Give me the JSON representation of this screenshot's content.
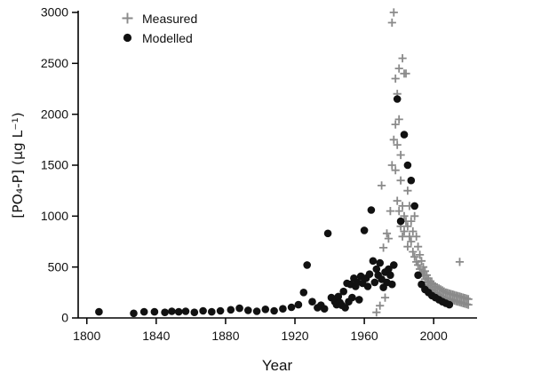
{
  "chart_data": {
    "type": "scatter",
    "title": "",
    "xlabel": "Year",
    "ylabel": "[PO₄-P] (µg L⁻¹)",
    "xlim": [
      1795,
      2025
    ],
    "ylim": [
      0,
      3000
    ],
    "xticks": [
      1800,
      1840,
      1880,
      1920,
      1960,
      2000
    ],
    "yticks": [
      0,
      500,
      1000,
      1500,
      2000,
      2500,
      3000
    ],
    "grid": false,
    "legend_position": "upper-left-inside",
    "colors": {
      "measured": "#8a8a8a",
      "modelled": "#111111",
      "axis": "#000000",
      "tick_text": "#111111"
    },
    "legend": [
      {
        "label": "Measured",
        "marker": "plus",
        "color": "#8a8a8a"
      },
      {
        "label": "Modelled",
        "marker": "filled-circle",
        "color": "#111111"
      }
    ],
    "series": [
      {
        "name": "Measured",
        "marker": "plus",
        "color": "#8a8a8a",
        "points": [
          [
            1967,
            55
          ],
          [
            1969,
            120
          ],
          [
            1970,
            1300
          ],
          [
            1971,
            690
          ],
          [
            1972,
            200
          ],
          [
            1973,
            830
          ],
          [
            1974,
            780
          ],
          [
            1975,
            1050
          ],
          [
            1976,
            2900
          ],
          [
            1976,
            1500
          ],
          [
            1977,
            3000
          ],
          [
            1977,
            1750
          ],
          [
            1978,
            2350
          ],
          [
            1978,
            1900
          ],
          [
            1978,
            1450
          ],
          [
            1979,
            2200
          ],
          [
            1979,
            1700
          ],
          [
            1979,
            1150
          ],
          [
            1980,
            2450
          ],
          [
            1980,
            1950
          ],
          [
            1980,
            1050
          ],
          [
            1981,
            1600
          ],
          [
            1981,
            1350
          ],
          [
            1981,
            900
          ],
          [
            1982,
            2550
          ],
          [
            1982,
            1100
          ],
          [
            1982,
            800
          ],
          [
            1983,
            2400
          ],
          [
            1983,
            1000
          ],
          [
            1983,
            850
          ],
          [
            1984,
            2400
          ],
          [
            1984,
            950
          ],
          [
            1985,
            1250
          ],
          [
            1985,
            900
          ],
          [
            1985,
            700
          ],
          [
            1986,
            1100
          ],
          [
            1986,
            800
          ],
          [
            1987,
            950
          ],
          [
            1987,
            750
          ],
          [
            1988,
            850
          ],
          [
            1988,
            650
          ],
          [
            1989,
            1000
          ],
          [
            1989,
            600
          ],
          [
            1990,
            800
          ],
          [
            1990,
            550
          ],
          [
            1991,
            700
          ],
          [
            1991,
            520
          ],
          [
            1992,
            620
          ],
          [
            1992,
            480
          ],
          [
            1993,
            560
          ],
          [
            1993,
            440
          ],
          [
            1994,
            500
          ],
          [
            1994,
            420
          ],
          [
            1995,
            460
          ],
          [
            1995,
            380
          ],
          [
            1996,
            420
          ],
          [
            1996,
            350
          ],
          [
            1997,
            390
          ],
          [
            1997,
            320
          ],
          [
            1998,
            360
          ],
          [
            1998,
            300
          ],
          [
            1999,
            340
          ],
          [
            1999,
            280
          ],
          [
            2000,
            330
          ],
          [
            2000,
            270
          ],
          [
            2000,
            240
          ],
          [
            2001,
            310
          ],
          [
            2001,
            250
          ],
          [
            2002,
            300
          ],
          [
            2002,
            240
          ],
          [
            2003,
            290
          ],
          [
            2003,
            230
          ],
          [
            2004,
            280
          ],
          [
            2004,
            220
          ],
          [
            2005,
            270
          ],
          [
            2005,
            210
          ],
          [
            2006,
            260
          ],
          [
            2006,
            200
          ],
          [
            2007,
            250
          ],
          [
            2007,
            195
          ],
          [
            2008,
            245
          ],
          [
            2008,
            190
          ],
          [
            2009,
            240
          ],
          [
            2009,
            185
          ],
          [
            2010,
            235
          ],
          [
            2010,
            180
          ],
          [
            2011,
            230
          ],
          [
            2011,
            175
          ],
          [
            2012,
            225
          ],
          [
            2012,
            170
          ],
          [
            2013,
            220
          ],
          [
            2013,
            165
          ],
          [
            2014,
            215
          ],
          [
            2014,
            160
          ],
          [
            2015,
            550
          ],
          [
            2015,
            210
          ],
          [
            2015,
            155
          ],
          [
            2016,
            205
          ],
          [
            2016,
            150
          ],
          [
            2017,
            200
          ],
          [
            2017,
            145
          ],
          [
            2018,
            195
          ],
          [
            2018,
            140
          ],
          [
            2019,
            190
          ],
          [
            2019,
            135
          ],
          [
            2020,
            185
          ],
          [
            2020,
            130
          ]
        ]
      },
      {
        "name": "Modelled",
        "marker": "filled-circle",
        "color": "#111111",
        "points": [
          [
            1807,
            60
          ],
          [
            1827,
            45
          ],
          [
            1833,
            60
          ],
          [
            1839,
            60
          ],
          [
            1845,
            55
          ],
          [
            1849,
            65
          ],
          [
            1853,
            60
          ],
          [
            1857,
            65
          ],
          [
            1862,
            55
          ],
          [
            1867,
            70
          ],
          [
            1872,
            60
          ],
          [
            1877,
            70
          ],
          [
            1883,
            80
          ],
          [
            1888,
            95
          ],
          [
            1893,
            75
          ],
          [
            1898,
            65
          ],
          [
            1903,
            85
          ],
          [
            1908,
            70
          ],
          [
            1913,
            90
          ],
          [
            1918,
            105
          ],
          [
            1922,
            130
          ],
          [
            1925,
            250
          ],
          [
            1927,
            520
          ],
          [
            1930,
            160
          ],
          [
            1933,
            100
          ],
          [
            1935,
            125
          ],
          [
            1937,
            90
          ],
          [
            1939,
            830
          ],
          [
            1941,
            200
          ],
          [
            1943,
            160
          ],
          [
            1944,
            130
          ],
          [
            1945,
            210
          ],
          [
            1946,
            150
          ],
          [
            1947,
            125
          ],
          [
            1948,
            260
          ],
          [
            1949,
            100
          ],
          [
            1950,
            340
          ],
          [
            1951,
            160
          ],
          [
            1952,
            330
          ],
          [
            1953,
            200
          ],
          [
            1954,
            390
          ],
          [
            1955,
            310
          ],
          [
            1956,
            350
          ],
          [
            1957,
            180
          ],
          [
            1958,
            410
          ],
          [
            1959,
            340
          ],
          [
            1960,
            860
          ],
          [
            1961,
            390
          ],
          [
            1962,
            310
          ],
          [
            1963,
            430
          ],
          [
            1964,
            1060
          ],
          [
            1965,
            560
          ],
          [
            1966,
            350
          ],
          [
            1967,
            480
          ],
          [
            1968,
            420
          ],
          [
            1969,
            540
          ],
          [
            1970,
            380
          ],
          [
            1971,
            300
          ],
          [
            1972,
            450
          ],
          [
            1973,
            350
          ],
          [
            1974,
            480
          ],
          [
            1975,
            420
          ],
          [
            1976,
            330
          ],
          [
            1977,
            520
          ],
          [
            1979,
            2150
          ],
          [
            1981,
            950
          ],
          [
            1983,
            1800
          ],
          [
            1985,
            1500
          ],
          [
            1987,
            1350
          ],
          [
            1989,
            1100
          ],
          [
            1991,
            420
          ],
          [
            1993,
            330
          ],
          [
            1995,
            280
          ],
          [
            1997,
            250
          ],
          [
            1999,
            220
          ],
          [
            2001,
            200
          ],
          [
            2003,
            180
          ],
          [
            2005,
            160
          ],
          [
            2007,
            145
          ],
          [
            2009,
            130
          ]
        ]
      }
    ]
  }
}
